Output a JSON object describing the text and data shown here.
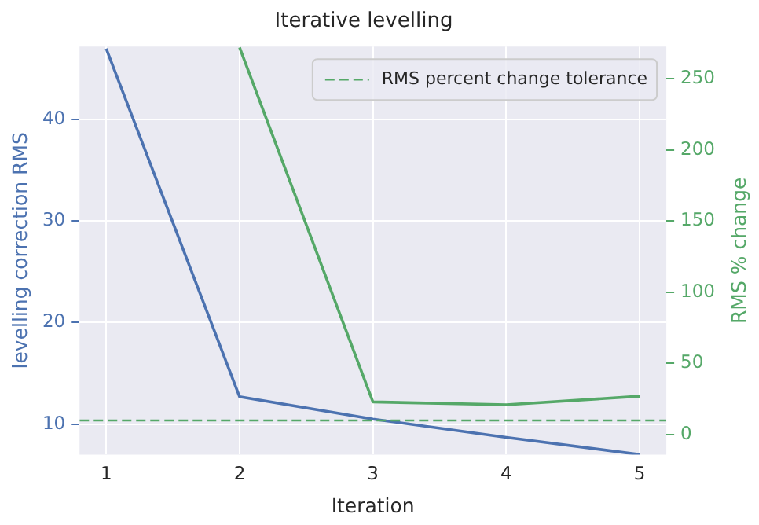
{
  "chart_data": {
    "type": "line",
    "title": "Iterative levelling",
    "xlabel": "Iteration",
    "ylabel": "levelling correction RMS",
    "y2label": "RMS % change",
    "x": [
      1,
      2,
      3,
      4,
      5
    ],
    "series": [
      {
        "color": "#4c72b0",
        "values": [
          47,
          12.7,
          10.5,
          8.7,
          7.0
        ]
      },
      {
        "color": "#55a868",
        "axis": "y2",
        "x": [
          2,
          3,
          4,
          5
        ],
        "values": [
          272,
          23,
          21,
          27
        ]
      }
    ],
    "xlim": [
      0.8,
      5.2
    ],
    "xticks": [
      1,
      2,
      3,
      4,
      5
    ],
    "ylim": [
      7,
      47.2
    ],
    "yticks": [
      10,
      20,
      30,
      40
    ],
    "y2lim": [
      -14,
      272.7
    ],
    "y2ticks": [
      0,
      50,
      100,
      150,
      200,
      250
    ],
    "ref_lines": [
      {
        "axis": "y2",
        "value": 10,
        "label": "RMS percent change tolerance",
        "color": "#55a868",
        "line_style": "dashed"
      }
    ],
    "grid": true,
    "legend": "top right",
    "line_style": "solid",
    "marker": "none"
  }
}
